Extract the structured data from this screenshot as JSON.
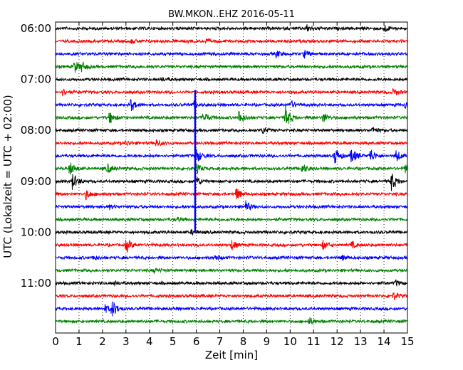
{
  "chart_data": {
    "type": "line",
    "title": "BW.MKON..EHZ 2016-05-11",
    "xlabel": "Zeit  [min]",
    "ylabel": "UTC (Lokalzeit = UTC + 02:00)",
    "xlim": [
      0,
      15
    ],
    "x_ticks": [
      "0",
      "1",
      "2",
      "3",
      "4",
      "5",
      "6",
      "7",
      "8",
      "9",
      "10",
      "11",
      "12",
      "13",
      "14",
      "15"
    ],
    "y_tick_labels": [
      "06:00",
      "07:00",
      "08:00",
      "09:00",
      "10:00",
      "11:00"
    ],
    "grid": "vertical-dotted",
    "trace_colors": [
      "#000000",
      "#ff0000",
      "#0000ff",
      "#008000"
    ],
    "traces": [
      {
        "start": "06:00",
        "color": "#000000",
        "events": [
          {
            "x": 10.7,
            "amp": 0.25
          },
          {
            "x": 14.0,
            "amp": 0.3
          }
        ]
      },
      {
        "start": "06:15",
        "color": "#ff0000",
        "events": [
          {
            "x": 3.2,
            "amp": 0.15
          },
          {
            "x": 6.4,
            "amp": 0.15
          }
        ]
      },
      {
        "start": "06:30",
        "color": "#0000ff",
        "events": [
          {
            "x": 9.4,
            "amp": 0.25
          },
          {
            "x": 10.6,
            "amp": 0.3
          }
        ]
      },
      {
        "start": "06:45",
        "color": "#008000",
        "events": [
          {
            "x": 0.8,
            "amp": 0.5
          },
          {
            "x": 1.1,
            "amp": 0.35
          }
        ]
      },
      {
        "start": "07:00",
        "color": "#000000",
        "events": [
          {
            "x": 4.5,
            "amp": 0.15
          }
        ]
      },
      {
        "start": "07:15",
        "color": "#ff0000",
        "events": [
          {
            "x": 0.3,
            "amp": 0.25
          },
          {
            "x": 14.4,
            "amp": 0.3
          }
        ]
      },
      {
        "start": "07:30",
        "color": "#0000ff",
        "events": [
          {
            "x": 3.2,
            "amp": 0.5
          },
          {
            "x": 5.9,
            "amp": 0.3
          },
          {
            "x": 10.0,
            "amp": 0.35
          },
          {
            "x": 14.9,
            "amp": 0.3
          }
        ]
      },
      {
        "start": "07:45",
        "color": "#008000",
        "events": [
          {
            "x": 2.3,
            "amp": 0.5
          },
          {
            "x": 6.3,
            "amp": 0.5
          },
          {
            "x": 7.8,
            "amp": 0.6
          },
          {
            "x": 9.8,
            "amp": 1.0
          },
          {
            "x": 11.4,
            "amp": 0.4
          }
        ]
      },
      {
        "start": "08:00",
        "color": "#000000",
        "events": [
          {
            "x": 8.8,
            "amp": 0.3
          },
          {
            "x": 13.5,
            "amp": 0.25
          }
        ]
      },
      {
        "start": "08:15",
        "color": "#ff0000",
        "events": [
          {
            "x": 3.0,
            "amp": 0.2
          },
          {
            "x": 4.3,
            "amp": 0.3
          }
        ]
      },
      {
        "start": "08:30",
        "color": "#0000ff",
        "events": [
          {
            "x": 6.0,
            "amp": 0.6
          },
          {
            "x": 11.9,
            "amp": 0.7
          },
          {
            "x": 12.6,
            "amp": 0.7
          },
          {
            "x": 13.4,
            "amp": 0.6
          },
          {
            "x": 14.5,
            "amp": 0.5
          }
        ]
      },
      {
        "start": "08:45",
        "color": "#008000",
        "events": [
          {
            "x": 0.6,
            "amp": 0.55
          },
          {
            "x": 2.2,
            "amp": 0.4
          },
          {
            "x": 6.0,
            "amp": 0.4
          },
          {
            "x": 10.5,
            "amp": 0.4
          },
          {
            "x": 14.9,
            "amp": 0.35
          }
        ]
      },
      {
        "start": "09:00",
        "color": "#000000",
        "events": [
          {
            "x": 0.7,
            "amp": 0.7
          },
          {
            "x": 6.0,
            "amp": 0.4
          },
          {
            "x": 14.3,
            "amp": 0.8
          }
        ]
      },
      {
        "start": "09:15",
        "color": "#ff0000",
        "events": [
          {
            "x": 1.3,
            "amp": 0.4
          },
          {
            "x": 7.7,
            "amp": 0.5
          }
        ]
      },
      {
        "start": "09:30",
        "color": "#0000ff",
        "events": [
          {
            "x": 2.3,
            "amp": 0.15
          },
          {
            "x": 8.1,
            "amp": 0.45
          }
        ]
      },
      {
        "start": "09:45",
        "color": "#008000",
        "events": [
          {
            "x": 5.2,
            "amp": 0.15
          }
        ]
      },
      {
        "start": "10:00",
        "color": "#000000",
        "events": [
          {
            "x": 5.8,
            "amp": 0.15
          }
        ]
      },
      {
        "start": "10:15",
        "color": "#ff0000",
        "events": [
          {
            "x": 3.0,
            "amp": 0.6
          },
          {
            "x": 7.5,
            "amp": 0.4
          },
          {
            "x": 11.4,
            "amp": 0.35
          },
          {
            "x": 12.6,
            "amp": 0.25
          }
        ]
      },
      {
        "start": "10:30",
        "color": "#0000ff",
        "events": [
          {
            "x": 1.6,
            "amp": 0.2
          },
          {
            "x": 6.8,
            "amp": 0.2
          },
          {
            "x": 12.2,
            "amp": 0.2
          }
        ]
      },
      {
        "start": "10:45",
        "color": "#008000",
        "events": [
          {
            "x": 4.2,
            "amp": 0.15
          }
        ]
      },
      {
        "start": "11:00",
        "color": "#000000",
        "events": [
          {
            "x": 2.5,
            "amp": 0.15
          },
          {
            "x": 14.5,
            "amp": 0.2
          }
        ]
      },
      {
        "start": "11:15",
        "color": "#ff0000",
        "events": [
          {
            "x": 14.4,
            "amp": 0.3
          }
        ]
      },
      {
        "start": "11:30",
        "color": "#0000ff",
        "events": [
          {
            "x": 2.4,
            "amp": 0.7
          },
          {
            "x": 2.1,
            "amp": 0.3
          }
        ]
      },
      {
        "start": "11:45",
        "color": "#008000",
        "events": [
          {
            "x": 10.8,
            "amp": 0.3
          }
        ]
      }
    ],
    "spike": {
      "x": 5.95,
      "from": "07:15",
      "to": "10:00",
      "color": "#0000ff"
    }
  }
}
